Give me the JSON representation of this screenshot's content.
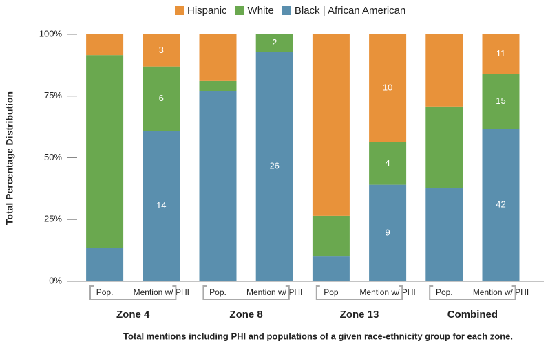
{
  "chart_data": {
    "type": "stacked_bar",
    "y_label": "Total Percentage Distribution",
    "x_label": "Total mentions including PHI and populations of a given race-ethnicity group for each zone.",
    "categories": [
      "Pop.",
      "Mention w/ PHI",
      "Pop.",
      "Mention w/ PHI",
      "Pop",
      "Mention w/ PHI",
      "Pop.",
      "Mention w/ PHI"
    ],
    "groups": [
      "Zone 4",
      "Zone 8",
      "Zone 13",
      "Combined"
    ],
    "series": [
      {
        "name": "Black | African American",
        "color": "#5a8fae",
        "values": [
          13.4,
          60.9,
          76.9,
          92.9,
          10.0,
          39.1,
          37.6,
          61.8
        ],
        "counts": [
          null,
          14,
          null,
          26,
          null,
          9,
          null,
          42
        ]
      },
      {
        "name": "White",
        "color": "#6aa84f",
        "values": [
          78.2,
          26.1,
          4.2,
          7.1,
          16.5,
          17.4,
          33.2,
          22.1
        ],
        "counts": [
          null,
          6,
          null,
          2,
          null,
          4,
          null,
          15
        ]
      },
      {
        "name": "Hispanic",
        "color": "#e8923a",
        "values": [
          8.4,
          13.0,
          18.9,
          0,
          73.5,
          43.5,
          29.2,
          16.2
        ],
        "counts": [
          null,
          3,
          null,
          null,
          null,
          10,
          null,
          11
        ]
      }
    ],
    "ylim": [
      0,
      100
    ],
    "yticks": [
      {
        "value": 0,
        "label": "0%"
      },
      {
        "value": 25,
        "label": "25%"
      },
      {
        "value": 50,
        "label": "50%"
      },
      {
        "value": 75,
        "label": "75%"
      },
      {
        "value": 100,
        "label": "100%"
      }
    ],
    "grid": false,
    "legend": "top"
  }
}
